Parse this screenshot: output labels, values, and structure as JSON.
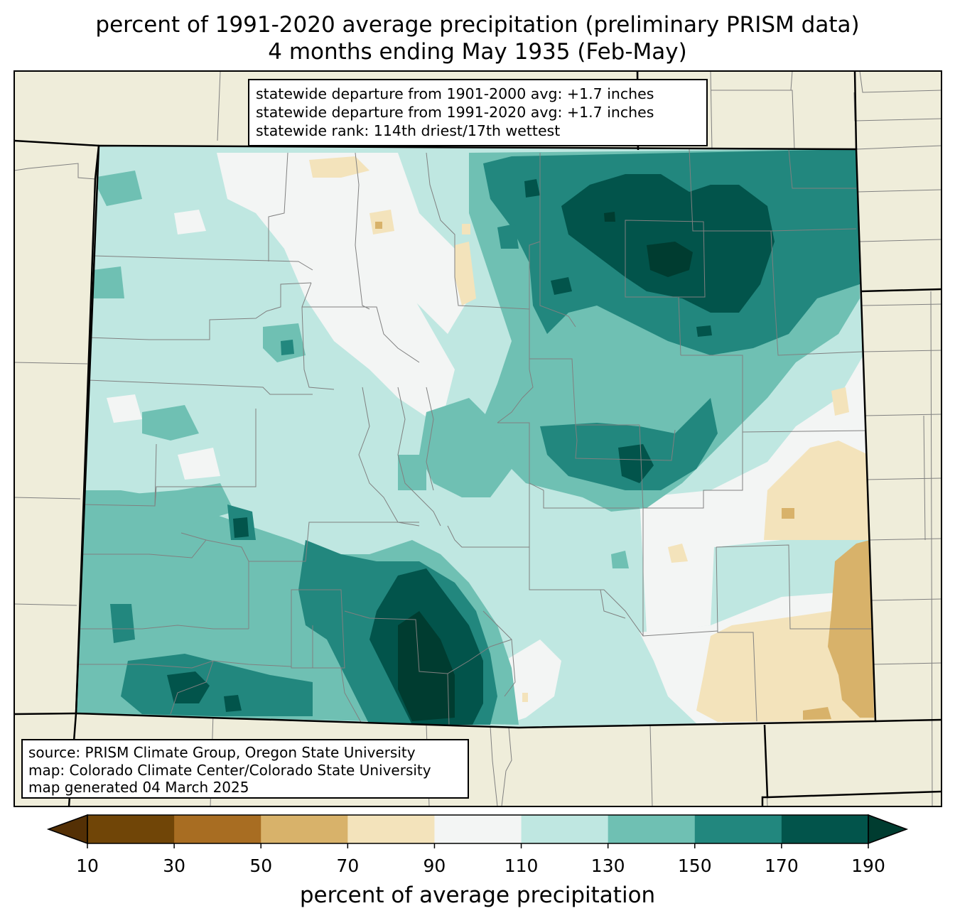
{
  "title": {
    "line1": "percent of 1991-2020 average precipitation (preliminary PRISM data)",
    "line2": "4 months ending May 1935 (Feb-May)"
  },
  "stats_box": {
    "line1": "statewide departure from 1901-2000 avg: +1.7 inches",
    "line2": "statewide departure from 1991-2020 avg: +1.7 inches",
    "line3": "statewide rank: 114th driest/17th wettest"
  },
  "source_box": {
    "line1": "source: PRISM Climate Group, Oregon State University",
    "line2": "map: Colorado Climate Center/Colorado State University",
    "line3": "map generated 04 March 2025"
  },
  "colorbar": {
    "label": "percent of average precipitation",
    "ticks": [
      "10",
      "30",
      "50",
      "70",
      "90",
      "110",
      "130",
      "150",
      "170",
      "190"
    ],
    "bin_colors": [
      "#704507",
      "#a86d22",
      "#d8b26a",
      "#f3e3bb",
      "#f3f5f4",
      "#bfe7e1",
      "#6fc0b3",
      "#22877e",
      "#02544b"
    ],
    "under_color": "#543005",
    "over_color": "#003c30"
  },
  "colors": {
    "background_land": "#efedda",
    "state_border": "#000000",
    "county_border": "#808080"
  }
}
